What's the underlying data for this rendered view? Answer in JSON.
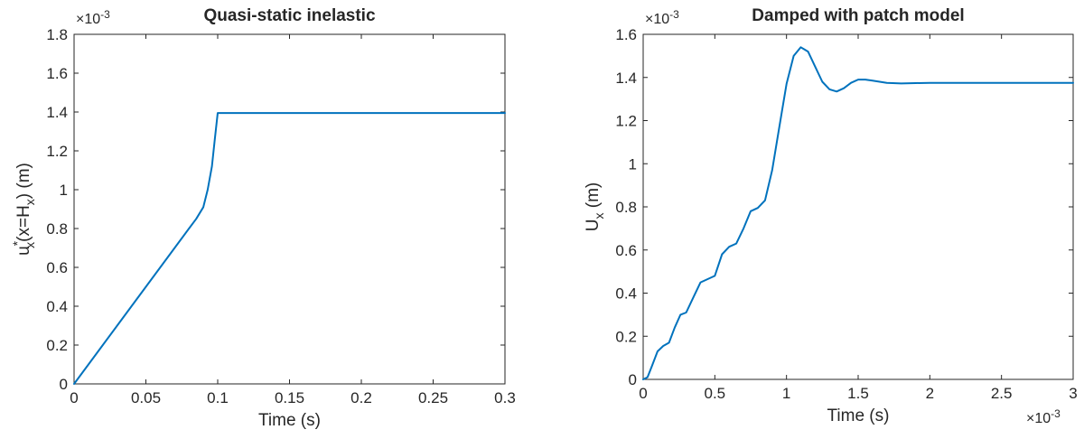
{
  "colors": {
    "series": "#0072BD",
    "axis": "#262626"
  },
  "chart_data": [
    {
      "type": "line",
      "title": "Quasi-static inelastic",
      "xlabel": "Time (s)",
      "ylabel_main": "u",
      "ylabel_sup": "*",
      "ylabel_sub": "x",
      "ylabel_mid": "(x=H",
      "ylabel_sub2": "x",
      "ylabel_end": ") (m)",
      "xlim": [
        0,
        0.3
      ],
      "ylim": [
        0,
        1.8
      ],
      "y_multiplier": "×10",
      "y_multiplier_exp": "-3",
      "x_multiplier": "",
      "x_multiplier_exp": "",
      "x_ticks": [
        "0",
        "0.05",
        "0.1",
        "0.15",
        "0.2",
        "0.25",
        "0.3"
      ],
      "y_ticks": [
        "0",
        "0.2",
        "0.4",
        "0.6",
        "0.8",
        "1",
        "1.2",
        "1.4",
        "1.6",
        "1.8"
      ],
      "x": [
        0,
        0.01,
        0.02,
        0.03,
        0.04,
        0.05,
        0.06,
        0.07,
        0.08,
        0.085,
        0.09,
        0.093,
        0.096,
        0.098,
        0.1,
        0.15,
        0.2,
        0.25,
        0.3
      ],
      "y": [
        0,
        0.1,
        0.2,
        0.3,
        0.4,
        0.5,
        0.6,
        0.7,
        0.8,
        0.85,
        0.91,
        1.0,
        1.12,
        1.26,
        1.395,
        1.395,
        1.395,
        1.395,
        1.395
      ]
    },
    {
      "type": "line",
      "title": "Damped with patch model",
      "xlabel": "Time (s)",
      "ylabel_main": "U",
      "ylabel_sup": "",
      "ylabel_sub": "x",
      "ylabel_mid": " (m)",
      "ylabel_sub2": "",
      "ylabel_end": "",
      "xlim": [
        0,
        3
      ],
      "ylim": [
        0,
        1.6
      ],
      "y_multiplier": "×10",
      "y_multiplier_exp": "-3",
      "x_multiplier": "×10",
      "x_multiplier_exp": "-3",
      "x_ticks": [
        "0",
        "0.5",
        "1",
        "1.5",
        "2",
        "2.5",
        "3"
      ],
      "y_ticks": [
        "0",
        "0.2",
        "0.4",
        "0.6",
        "0.8",
        "1",
        "1.2",
        "1.4",
        "1.6"
      ],
      "x": [
        0,
        0.03,
        0.06,
        0.1,
        0.14,
        0.18,
        0.22,
        0.26,
        0.3,
        0.35,
        0.4,
        0.45,
        0.5,
        0.55,
        0.6,
        0.65,
        0.7,
        0.75,
        0.8,
        0.85,
        0.9,
        0.95,
        1.0,
        1.05,
        1.1,
        1.15,
        1.2,
        1.25,
        1.3,
        1.35,
        1.4,
        1.45,
        1.5,
        1.55,
        1.6,
        1.65,
        1.7,
        1.8,
        1.9,
        2.0,
        2.2,
        2.5,
        2.8,
        3.0
      ],
      "y": [
        0,
        0.01,
        0.06,
        0.13,
        0.155,
        0.17,
        0.24,
        0.3,
        0.31,
        0.38,
        0.45,
        0.465,
        0.48,
        0.58,
        0.615,
        0.63,
        0.7,
        0.78,
        0.795,
        0.83,
        0.97,
        1.17,
        1.37,
        1.5,
        1.54,
        1.52,
        1.45,
        1.38,
        1.345,
        1.335,
        1.35,
        1.375,
        1.39,
        1.39,
        1.385,
        1.38,
        1.375,
        1.372,
        1.374,
        1.375,
        1.375,
        1.375,
        1.375,
        1.375
      ]
    }
  ]
}
